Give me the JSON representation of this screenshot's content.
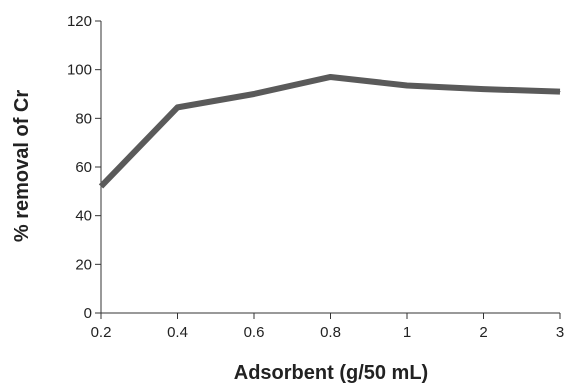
{
  "chart_data": {
    "type": "line",
    "title": "",
    "xlabel": "Adsorbent (g/50 mL)",
    "ylabel": "% removal of Cr",
    "categories": [
      "0.2",
      "0.4",
      "0.6",
      "0.8",
      "1",
      "2",
      "3"
    ],
    "series": [
      {
        "values": [
          52,
          84.5,
          90,
          97,
          93.5,
          92,
          91
        ],
        "color": "#5a5a5a"
      }
    ],
    "ylim": [
      0,
      120
    ],
    "yticks": [
      "0",
      "20",
      "40",
      "60",
      "80",
      "100",
      "120"
    ],
    "grid": false,
    "legend": "none"
  }
}
